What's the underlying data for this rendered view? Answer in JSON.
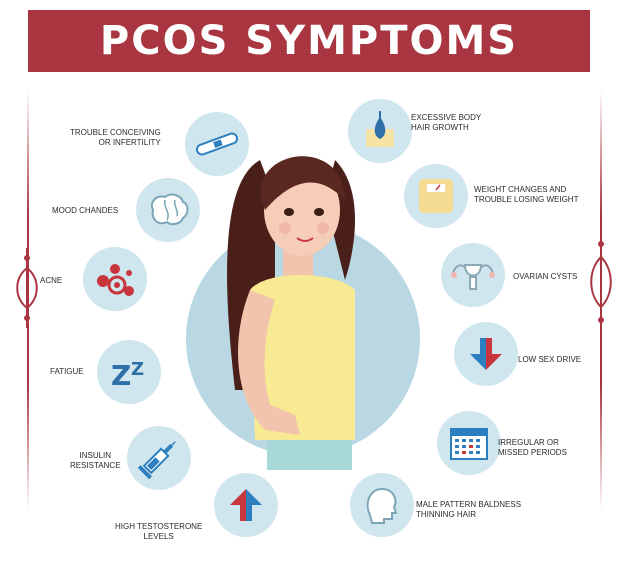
{
  "title": "PCOS SYMPTOMS",
  "colors": {
    "banner": "#a8353f",
    "circle": "#cfe6ee",
    "big_circle": "#b9d8e3",
    "accent_blue": "#2d7fbf",
    "accent_red": "#c8363d"
  },
  "left_symptoms": [
    {
      "lines": [
        "TROUBLE CONCEIVING",
        "OR INFERTILITY"
      ],
      "icon": "pregnancy-test-icon"
    },
    {
      "lines": [
        "MOOD CHANDES"
      ],
      "icon": "brain-icon"
    },
    {
      "lines": [
        "ACNE"
      ],
      "icon": "acne-icon"
    },
    {
      "lines": [
        "FATIGUE"
      ],
      "icon": "sleep-zz-icon"
    },
    {
      "lines": [
        "INSULIN",
        "RESISTANCE"
      ],
      "icon": "syringe-icon"
    },
    {
      "lines": [
        "HIGH TESTOSTERONE",
        "LEVELS"
      ],
      "icon": "arrow-up-icon"
    }
  ],
  "right_symptoms": [
    {
      "lines": [
        "EXCESSIVE BODY",
        "HAIR GROWTH"
      ],
      "icon": "hair-follicle-icon"
    },
    {
      "lines": [
        "WEIGHT CHANGES AND",
        "TROUBLE LOSING WEIGHT"
      ],
      "icon": "scale-icon"
    },
    {
      "lines": [
        "OVARIAN CYSTS"
      ],
      "icon": "uterus-icon"
    },
    {
      "lines": [
        "LOW SEX DRIVE"
      ],
      "icon": "arrow-down-icon"
    },
    {
      "lines": [
        "IRREGULAR OR",
        "MISSED PERIODS"
      ],
      "icon": "calendar-icon"
    },
    {
      "lines": [
        "MALE PATTERN BALDNESS",
        "THINNING HAIR"
      ],
      "icon": "bald-head-icon"
    }
  ]
}
